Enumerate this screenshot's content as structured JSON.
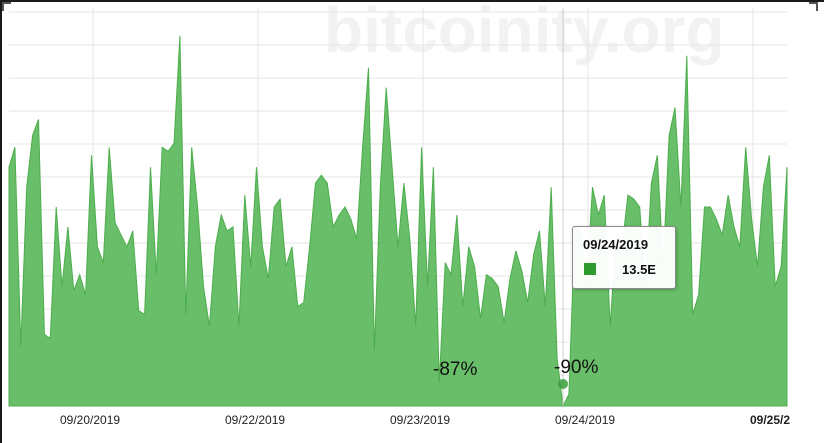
{
  "watermark": "bitcoinity.org",
  "colors": {
    "area_fill": "#5cb85c",
    "area_stroke": "#4cae4c",
    "tooltip_swatch": "#2e9b2e",
    "grid": "#e6e6e6",
    "marker": "#3a9f3a"
  },
  "chart_data": {
    "type": "area",
    "x_tick_labels": [
      "09/20/2019",
      "09/22/2019",
      "09/23/2019",
      "09/24/2019",
      "09/25/2"
    ],
    "ylim": [
      0,
      100
    ],
    "grid": true,
    "values": [
      60,
      65,
      15,
      55,
      68,
      72,
      18,
      17,
      50,
      30,
      45,
      29,
      33,
      28,
      63,
      40,
      36,
      65,
      46,
      43,
      40,
      44,
      24,
      23,
      60,
      33,
      65,
      64,
      66,
      93,
      23,
      65,
      50,
      30,
      20,
      40,
      48,
      44,
      45,
      20,
      53,
      35,
      60,
      40,
      32,
      50,
      52,
      35,
      40,
      25,
      26,
      40,
      56,
      58,
      56,
      45,
      48,
      50,
      47,
      42,
      65,
      85,
      14,
      55,
      80,
      60,
      40,
      56,
      42,
      20,
      65,
      30,
      60,
      6,
      36,
      33,
      48,
      25,
      40,
      35,
      22,
      33,
      32,
      30,
      21,
      32,
      39,
      34,
      26,
      38,
      44,
      25,
      55,
      12,
      0,
      3,
      45,
      44,
      30,
      55,
      48,
      53,
      20,
      43,
      40,
      53,
      52,
      50,
      30,
      56,
      63,
      35,
      68,
      75,
      50,
      88,
      23,
      28,
      50,
      50,
      47,
      43,
      53,
      45,
      40,
      65,
      47,
      35,
      55,
      63,
      30,
      35,
      60
    ]
  },
  "annotations": [
    {
      "label": "-87%"
    },
    {
      "label": "-90%"
    }
  ],
  "tooltip": {
    "date": "09/24/2019",
    "value": "13.5E"
  }
}
